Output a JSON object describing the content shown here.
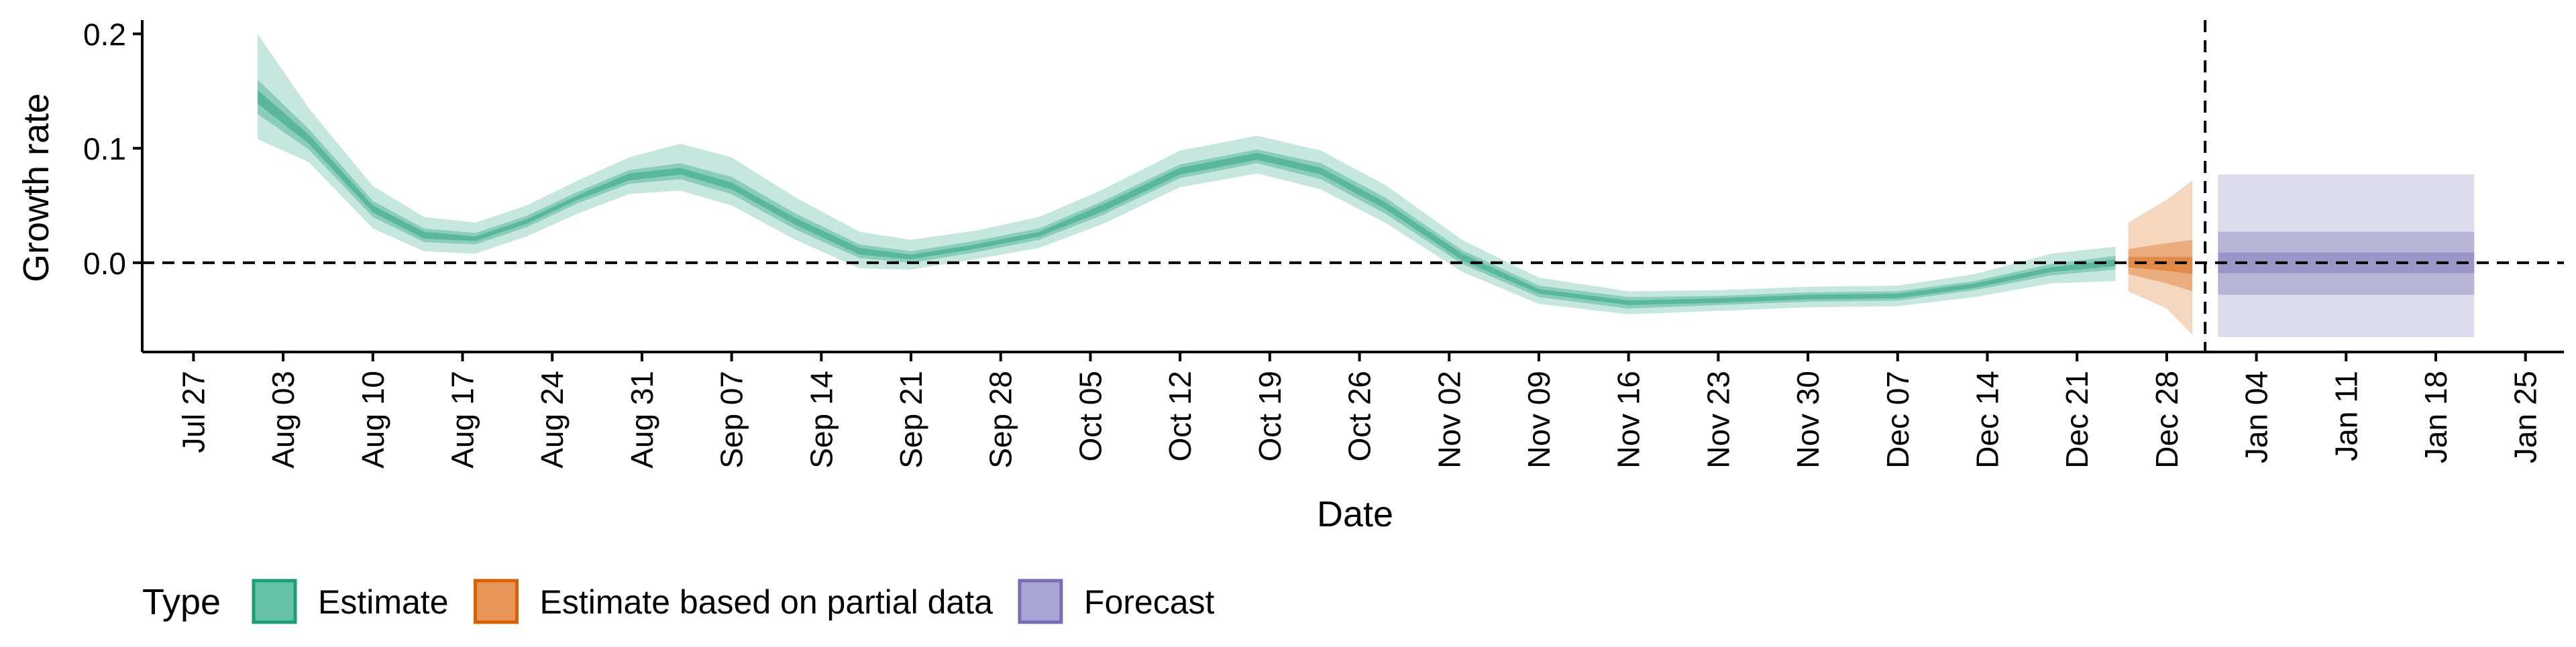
{
  "chart_data": {
    "type": "area",
    "xlabel": "Date",
    "ylabel": "Growth rate",
    "ylim": [
      -0.078,
      0.212
    ],
    "y_ticks": [
      0.0,
      0.1,
      0.2
    ],
    "y_tick_labels": [
      "0.0",
      "0.1",
      "0.2"
    ],
    "xlim": [
      "2020-07-23",
      "2021-01-28"
    ],
    "x_ticks": [
      "2020-07-27",
      "2020-08-03",
      "2020-08-10",
      "2020-08-17",
      "2020-08-24",
      "2020-08-31",
      "2020-09-07",
      "2020-09-14",
      "2020-09-21",
      "2020-09-28",
      "2020-10-05",
      "2020-10-12",
      "2020-10-19",
      "2020-10-26",
      "2020-11-02",
      "2020-11-09",
      "2020-11-16",
      "2020-11-23",
      "2020-11-30",
      "2020-12-07",
      "2020-12-14",
      "2020-12-21",
      "2020-12-28",
      "2021-01-04",
      "2021-01-11",
      "2021-01-18",
      "2021-01-25"
    ],
    "x_tick_labels": [
      "Jul 27",
      "Aug 03",
      "Aug 10",
      "Aug 17",
      "Aug 24",
      "Aug 31",
      "Sep 07",
      "Sep 14",
      "Sep 21",
      "Sep 28",
      "Oct 05",
      "Oct 12",
      "Oct 19",
      "Oct 26",
      "Nov 02",
      "Nov 09",
      "Nov 16",
      "Nov 23",
      "Nov 30",
      "Dec 07",
      "Dec 14",
      "Dec 21",
      "Dec 28",
      "Jan 04",
      "Jan 11",
      "Jan 18",
      "Jan 25"
    ],
    "reference_lines": {
      "horizontal_y": 0.0,
      "vertical_date": "2020-12-31"
    },
    "grid": false,
    "legend": {
      "title": "Type",
      "position": "bottom-left",
      "entries": [
        {
          "label": "Estimate",
          "fill": "#66c2a5",
          "stroke": "#1b9e77"
        },
        {
          "label": "Estimate based on partial data",
          "fill": "#e8955a",
          "stroke": "#d95f02"
        },
        {
          "label": "Forecast",
          "fill": "#a8a4d6",
          "stroke": "#7570b3"
        }
      ]
    },
    "series": [
      {
        "name": "Estimate",
        "color": "#1b9e77",
        "points": [
          {
            "x": "2020-08-01",
            "median": 0.145,
            "lower90": 0.108,
            "upper90": 0.2,
            "lower50": 0.13,
            "upper50": 0.16,
            "lower20": 0.139,
            "upper20": 0.151
          },
          {
            "x": "2020-08-05",
            "median": 0.108,
            "lower90": 0.088,
            "upper90": 0.135,
            "lower50": 0.099,
            "upper50": 0.117,
            "lower20": 0.104,
            "upper20": 0.112
          },
          {
            "x": "2020-08-10",
            "median": 0.047,
            "lower90": 0.03,
            "upper90": 0.067,
            "lower50": 0.04,
            "upper50": 0.054,
            "lower20": 0.044,
            "upper20": 0.05
          },
          {
            "x": "2020-08-14",
            "median": 0.024,
            "lower90": 0.01,
            "upper90": 0.04,
            "lower50": 0.018,
            "upper50": 0.03,
            "lower20": 0.021,
            "upper20": 0.027
          },
          {
            "x": "2020-08-18",
            "median": 0.021,
            "lower90": 0.008,
            "upper90": 0.035,
            "lower50": 0.016,
            "upper50": 0.026,
            "lower20": 0.019,
            "upper20": 0.023
          },
          {
            "x": "2020-08-22",
            "median": 0.036,
            "lower90": 0.023,
            "upper90": 0.05,
            "lower50": 0.031,
            "upper50": 0.041,
            "lower20": 0.034,
            "upper20": 0.038
          },
          {
            "x": "2020-08-26",
            "median": 0.057,
            "lower90": 0.043,
            "upper90": 0.072,
            "lower50": 0.052,
            "upper50": 0.062,
            "lower20": 0.055,
            "upper20": 0.059
          },
          {
            "x": "2020-08-30",
            "median": 0.075,
            "lower90": 0.06,
            "upper90": 0.092,
            "lower50": 0.069,
            "upper50": 0.081,
            "lower20": 0.072,
            "upper20": 0.078
          },
          {
            "x": "2020-09-03",
            "median": 0.08,
            "lower90": 0.063,
            "upper90": 0.104,
            "lower50": 0.073,
            "upper50": 0.087,
            "lower20": 0.077,
            "upper20": 0.083
          },
          {
            "x": "2020-09-07",
            "median": 0.067,
            "lower90": 0.05,
            "upper90": 0.092,
            "lower50": 0.06,
            "upper50": 0.075,
            "lower20": 0.064,
            "upper20": 0.07
          },
          {
            "x": "2020-09-12",
            "median": 0.036,
            "lower90": 0.02,
            "upper90": 0.057,
            "lower50": 0.029,
            "upper50": 0.043,
            "lower20": 0.033,
            "upper20": 0.039
          },
          {
            "x": "2020-09-17",
            "median": 0.01,
            "lower90": -0.005,
            "upper90": 0.027,
            "lower50": 0.004,
            "upper50": 0.016,
            "lower20": 0.007,
            "upper20": 0.013
          },
          {
            "x": "2020-09-21",
            "median": 0.005,
            "lower90": -0.006,
            "upper90": 0.02,
            "lower50": 0.0,
            "upper50": 0.01,
            "lower20": 0.003,
            "upper20": 0.007
          },
          {
            "x": "2020-09-26",
            "median": 0.014,
            "lower90": 0.003,
            "upper90": 0.028,
            "lower50": 0.009,
            "upper50": 0.019,
            "lower20": 0.012,
            "upper20": 0.016
          },
          {
            "x": "2020-10-01",
            "median": 0.025,
            "lower90": 0.013,
            "upper90": 0.04,
            "lower50": 0.02,
            "upper50": 0.03,
            "lower20": 0.023,
            "upper20": 0.027
          },
          {
            "x": "2020-10-06",
            "median": 0.048,
            "lower90": 0.034,
            "upper90": 0.064,
            "lower50": 0.042,
            "upper50": 0.054,
            "lower20": 0.045,
            "upper20": 0.051
          },
          {
            "x": "2020-10-12",
            "median": 0.08,
            "lower90": 0.066,
            "upper90": 0.098,
            "lower50": 0.074,
            "upper50": 0.086,
            "lower20": 0.077,
            "upper20": 0.083
          },
          {
            "x": "2020-10-18",
            "median": 0.093,
            "lower90": 0.078,
            "upper90": 0.111,
            "lower50": 0.087,
            "upper50": 0.099,
            "lower20": 0.09,
            "upper20": 0.096
          },
          {
            "x": "2020-10-23",
            "median": 0.08,
            "lower90": 0.064,
            "upper90": 0.098,
            "lower50": 0.073,
            "upper50": 0.087,
            "lower20": 0.077,
            "upper20": 0.083
          },
          {
            "x": "2020-10-28",
            "median": 0.05,
            "lower90": 0.035,
            "upper90": 0.068,
            "lower50": 0.043,
            "upper50": 0.057,
            "lower20": 0.047,
            "upper20": 0.053
          },
          {
            "x": "2020-11-03",
            "median": 0.005,
            "lower90": -0.008,
            "upper90": 0.02,
            "lower50": -0.001,
            "upper50": 0.011,
            "lower20": 0.002,
            "upper20": 0.008
          },
          {
            "x": "2020-11-09",
            "median": -0.025,
            "lower90": -0.036,
            "upper90": -0.013,
            "lower50": -0.03,
            "upper50": -0.02,
            "lower20": -0.027,
            "upper20": -0.023
          },
          {
            "x": "2020-11-16",
            "median": -0.035,
            "lower90": -0.045,
            "upper90": -0.025,
            "lower50": -0.04,
            "upper50": -0.03,
            "lower20": -0.037,
            "upper20": -0.033
          },
          {
            "x": "2020-11-23",
            "median": -0.033,
            "lower90": -0.042,
            "upper90": -0.024,
            "lower50": -0.037,
            "upper50": -0.029,
            "lower20": -0.035,
            "upper20": -0.031
          },
          {
            "x": "2020-11-30",
            "median": -0.03,
            "lower90": -0.039,
            "upper90": -0.021,
            "lower50": -0.034,
            "upper50": -0.026,
            "lower20": -0.032,
            "upper20": -0.028
          },
          {
            "x": "2020-12-07",
            "median": -0.029,
            "lower90": -0.038,
            "upper90": -0.02,
            "lower50": -0.033,
            "upper50": -0.025,
            "lower20": -0.031,
            "upper20": -0.027
          },
          {
            "x": "2020-12-13",
            "median": -0.02,
            "lower90": -0.03,
            "upper90": -0.01,
            "lower50": -0.024,
            "upper50": -0.016,
            "lower20": -0.022,
            "upper20": -0.018
          },
          {
            "x": "2020-12-19",
            "median": -0.006,
            "lower90": -0.018,
            "upper90": 0.008,
            "lower50": -0.011,
            "upper50": -0.001,
            "lower20": -0.008,
            "upper20": -0.004
          },
          {
            "x": "2020-12-24",
            "median": 0.0,
            "lower90": -0.016,
            "upper90": 0.014,
            "lower50": -0.006,
            "upper50": 0.006,
            "lower20": -0.003,
            "upper20": 0.003
          }
        ]
      },
      {
        "name": "Estimate based on partial data",
        "color": "#d95f02",
        "points": [
          {
            "x": "2020-12-25",
            "median": 0.0,
            "lower90": -0.025,
            "upper90": 0.035,
            "lower50": -0.01,
            "upper50": 0.012,
            "lower20": -0.004,
            "upper20": 0.005
          },
          {
            "x": "2020-12-28",
            "median": -0.002,
            "lower90": -0.04,
            "upper90": 0.055,
            "lower50": -0.018,
            "upper50": 0.017,
            "lower20": -0.007,
            "upper20": 0.005
          },
          {
            "x": "2020-12-30",
            "median": -0.004,
            "lower90": -0.063,
            "upper90": 0.072,
            "lower50": -0.025,
            "upper50": 0.02,
            "lower20": -0.01,
            "upper20": 0.005
          }
        ]
      },
      {
        "name": "Forecast",
        "color": "#7570b3",
        "points": [
          {
            "x": "2021-01-01",
            "median": 0.0,
            "lower90": -0.065,
            "upper90": 0.077,
            "lower50": -0.028,
            "upper50": 0.027,
            "lower20": -0.009,
            "upper20": 0.009
          },
          {
            "x": "2021-01-21",
            "median": 0.0,
            "lower90": -0.065,
            "upper90": 0.077,
            "lower50": -0.028,
            "upper50": 0.027,
            "lower20": -0.009,
            "upper20": 0.009
          }
        ]
      }
    ]
  }
}
